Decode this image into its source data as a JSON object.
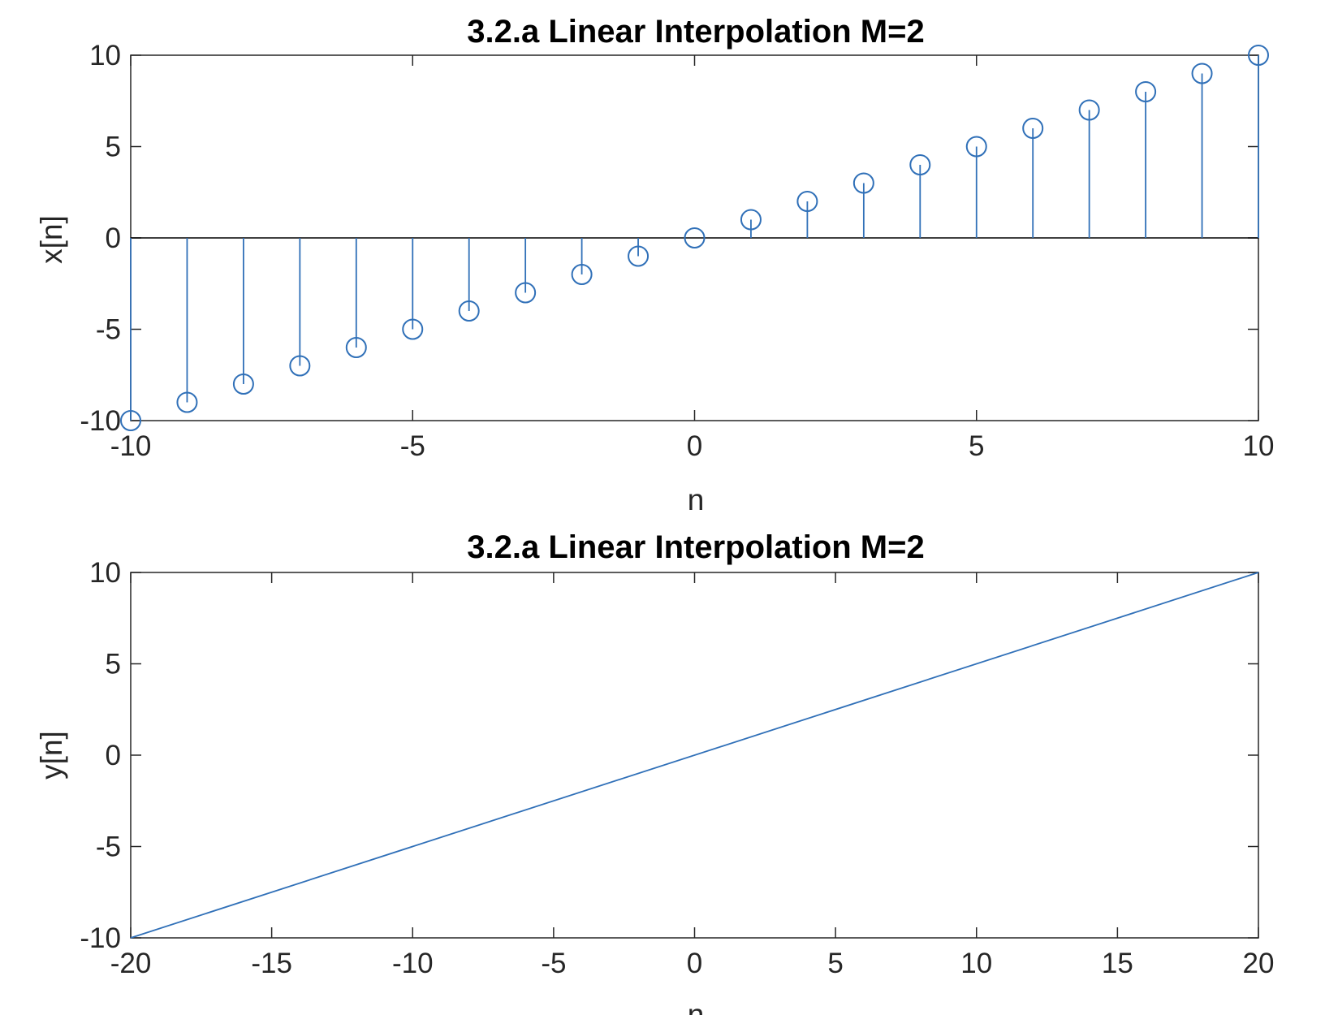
{
  "chart_data": [
    {
      "type": "stem",
      "title": "3.2.a Linear Interpolation M=2",
      "xlabel": "n",
      "ylabel": "x[n]",
      "xlim": [
        -10,
        10
      ],
      "ylim": [
        -10,
        10
      ],
      "xticks": [
        -10,
        -5,
        0,
        5,
        10
      ],
      "yticks": [
        -10,
        -5,
        0,
        5,
        10
      ],
      "grid": false,
      "color": "#3070B8",
      "x": [
        -10,
        -9,
        -8,
        -7,
        -6,
        -5,
        -4,
        -3,
        -2,
        -1,
        0,
        1,
        2,
        3,
        4,
        5,
        6,
        7,
        8,
        9,
        10
      ],
      "y": [
        -10,
        -9,
        -8,
        -7,
        -6,
        -5,
        -4,
        -3,
        -2,
        -1,
        0,
        1,
        2,
        3,
        4,
        5,
        6,
        7,
        8,
        9,
        10
      ]
    },
    {
      "type": "line",
      "title": "3.2.a Linear Interpolation M=2",
      "xlabel": "n",
      "ylabel": "y[n]",
      "xlim": [
        -20,
        20
      ],
      "ylim": [
        -10,
        10
      ],
      "xticks": [
        -20,
        -15,
        -10,
        -5,
        0,
        5,
        10,
        15,
        20
      ],
      "yticks": [
        -10,
        -5,
        0,
        5,
        10
      ],
      "grid": false,
      "color": "#3070B8",
      "x": [
        -20,
        20
      ],
      "y": [
        -10,
        10
      ]
    }
  ]
}
